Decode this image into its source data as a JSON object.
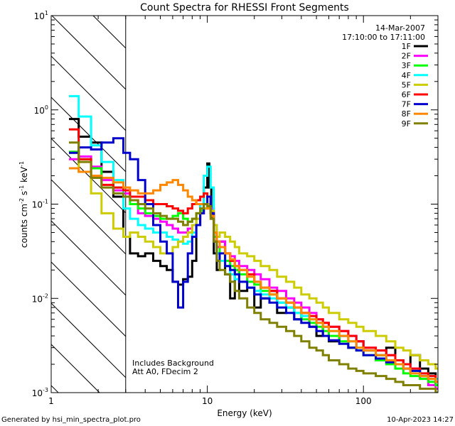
{
  "footer": {
    "generated_by": "Generated by hsi_min_spectra_plot.pro",
    "timestamp": "10-Apr-2023 14:27"
  },
  "chart_data": {
    "type": "line",
    "title": "Count Spectra for RHESSI Front Segments",
    "xlabel": "Energy (keV)",
    "ylabel_main": "counts cm",
    "ylabel_sup1": "-2",
    "ylabel_mid": " s",
    "ylabel_sup2": "-1",
    "ylabel_end": " keV",
    "ylabel_sup3": "-1",
    "xscale": "log",
    "yscale": "log",
    "xlim": [
      1,
      300
    ],
    "ylim": [
      0.001,
      10
    ],
    "x_ticks": [
      {
        "value": 1,
        "label": "1"
      },
      {
        "value": 10,
        "label": "10"
      },
      {
        "value": 100,
        "label": "100"
      }
    ],
    "y_ticks": [
      {
        "value": 0.001,
        "base": "10",
        "exp": "-3"
      },
      {
        "value": 0.01,
        "base": "10",
        "exp": "-2"
      },
      {
        "value": 0.1,
        "base": "10",
        "exp": "-1"
      },
      {
        "value": 1,
        "base": "10",
        "exp": "0"
      },
      {
        "value": 10,
        "base": "10",
        "exp": "1"
      }
    ],
    "attenuator_cutoff_kev": 3,
    "date": "14-Mar-2007",
    "time_range": "17:10:00 to 17:11:00",
    "annotations": [
      "Includes Background",
      "Att A0, FDecim 2"
    ],
    "series": [
      {
        "name": "1F",
        "color": "#000000",
        "x": [
          1.3,
          1.5,
          1.8,
          2.1,
          2.5,
          2.9,
          3.2,
          3.6,
          4.0,
          4.5,
          5.0,
          5.5,
          6.0,
          6.5,
          7.0,
          7.5,
          8.0,
          8.5,
          9.0,
          9.5,
          10.0,
          10.3,
          10.6,
          11.0,
          11.5,
          12.0,
          13,
          14,
          15,
          16,
          18,
          20,
          22,
          25,
          28,
          32,
          36,
          40,
          45,
          50,
          55,
          60,
          70,
          80,
          90,
          100,
          120,
          140,
          160,
          180,
          200,
          230,
          260,
          290
        ],
        "y": [
          0.8,
          0.52,
          0.45,
          0.22,
          0.12,
          0.045,
          0.03,
          0.028,
          0.03,
          0.025,
          0.022,
          0.02,
          0.015,
          0.014,
          0.016,
          0.017,
          0.025,
          0.06,
          0.1,
          0.15,
          0.27,
          0.15,
          0.07,
          0.03,
          0.02,
          0.04,
          0.018,
          0.01,
          0.02,
          0.012,
          0.013,
          0.008,
          0.01,
          0.012,
          0.007,
          0.008,
          0.006,
          0.007,
          0.005,
          0.004,
          0.005,
          0.0035,
          0.004,
          0.003,
          0.0035,
          0.0028,
          0.0025,
          0.003,
          0.0022,
          0.002,
          0.0025,
          0.0018,
          0.0016,
          0.0012
        ]
      },
      {
        "name": "2F",
        "color": "#ff00ff",
        "x": [
          1.3,
          1.5,
          1.8,
          2.1,
          2.5,
          2.9,
          3.2,
          3.6,
          4.0,
          4.5,
          5.0,
          5.5,
          6.0,
          6.5,
          7.0,
          7.5,
          8.0,
          8.5,
          9.0,
          9.5,
          10.0,
          10.5,
          11.0,
          11.5,
          12.0,
          13,
          14,
          15,
          16,
          18,
          20,
          22,
          25,
          28,
          32,
          36,
          40,
          45,
          50,
          55,
          60,
          70,
          80,
          90,
          100,
          120,
          140,
          160,
          180,
          200,
          230,
          260,
          290
        ],
        "y": [
          0.3,
          0.32,
          0.25,
          0.18,
          0.14,
          0.13,
          0.11,
          0.08,
          0.075,
          0.07,
          0.065,
          0.06,
          0.055,
          0.05,
          0.05,
          0.055,
          0.06,
          0.07,
          0.08,
          0.09,
          0.1,
          0.09,
          0.05,
          0.035,
          0.04,
          0.03,
          0.028,
          0.025,
          0.022,
          0.02,
          0.018,
          0.016,
          0.013,
          0.012,
          0.01,
          0.009,
          0.008,
          0.007,
          0.006,
          0.0055,
          0.005,
          0.0045,
          0.004,
          0.0035,
          0.003,
          0.0028,
          0.0025,
          0.0022,
          0.002,
          0.0018,
          0.0015,
          0.0012,
          0.0011
        ]
      },
      {
        "name": "3F",
        "color": "#00ff00",
        "x": [
          1.3,
          1.5,
          1.8,
          2.1,
          2.5,
          2.9,
          3.2,
          3.6,
          4.0,
          4.5,
          5.0,
          5.5,
          6.0,
          6.5,
          7.0,
          7.5,
          8.0,
          8.5,
          9.0,
          9.5,
          10.0,
          10.5,
          11.0,
          11.5,
          12.0,
          13,
          14,
          15,
          16,
          18,
          20,
          22,
          25,
          28,
          32,
          36,
          40,
          45,
          50,
          55,
          60,
          70,
          80,
          90,
          100,
          120,
          140,
          160,
          180,
          200,
          230,
          260,
          290
        ],
        "y": [
          0.36,
          0.3,
          0.24,
          0.19,
          0.15,
          0.12,
          0.1,
          0.09,
          0.08,
          0.075,
          0.07,
          0.07,
          0.075,
          0.08,
          0.07,
          0.065,
          0.07,
          0.08,
          0.085,
          0.09,
          0.1,
          0.08,
          0.045,
          0.03,
          0.035,
          0.025,
          0.022,
          0.02,
          0.018,
          0.015,
          0.014,
          0.012,
          0.011,
          0.009,
          0.008,
          0.007,
          0.006,
          0.0055,
          0.005,
          0.0045,
          0.004,
          0.0035,
          0.003,
          0.0028,
          0.0025,
          0.0022,
          0.002,
          0.0018,
          0.0016,
          0.0015,
          0.0014,
          0.0013,
          0.0012
        ]
      },
      {
        "name": "4F",
        "color": "#00ffff",
        "x": [
          1.3,
          1.5,
          1.8,
          2.1,
          2.5,
          2.9,
          3.2,
          3.6,
          4.0,
          4.5,
          5.0,
          5.5,
          6.0,
          6.5,
          7.0,
          7.5,
          8.0,
          8.5,
          9.0,
          9.5,
          10.0,
          10.5,
          11.0,
          11.5,
          12.0,
          13,
          14,
          15,
          16,
          18,
          20,
          22,
          25,
          28,
          32,
          36,
          40,
          45,
          50,
          55,
          60,
          70,
          80,
          90,
          100,
          120,
          140,
          160,
          180,
          200,
          230,
          260,
          290
        ],
        "y": [
          1.4,
          0.85,
          0.42,
          0.28,
          0.18,
          0.09,
          0.07,
          0.06,
          0.055,
          0.05,
          0.05,
          0.045,
          0.042,
          0.04,
          0.038,
          0.04,
          0.05,
          0.07,
          0.1,
          0.2,
          0.25,
          0.15,
          0.06,
          0.03,
          0.025,
          0.022,
          0.018,
          0.016,
          0.015,
          0.013,
          0.012,
          0.011,
          0.01,
          0.009,
          0.008,
          0.007,
          0.0065,
          0.006,
          0.0055,
          0.005,
          0.0045,
          0.004,
          0.0035,
          0.003,
          0.0028,
          0.0025,
          0.0022,
          0.002,
          0.0018,
          0.0017,
          0.0016,
          0.0015,
          0.0014
        ]
      },
      {
        "name": "5F",
        "color": "#cccc00",
        "x": [
          1.3,
          1.5,
          1.8,
          2.1,
          2.5,
          2.9,
          3.2,
          3.6,
          4.0,
          4.5,
          5.0,
          5.5,
          6.0,
          6.5,
          7.0,
          7.5,
          8.0,
          8.5,
          9.0,
          9.5,
          10.0,
          10.5,
          11.0,
          11.5,
          12.0,
          13,
          14,
          15,
          16,
          18,
          20,
          22,
          25,
          28,
          32,
          36,
          40,
          45,
          50,
          55,
          60,
          70,
          80,
          90,
          100,
          120,
          140,
          160,
          180,
          200,
          230,
          260,
          290
        ],
        "y": [
          0.35,
          0.22,
          0.13,
          0.08,
          0.055,
          0.045,
          0.05,
          0.045,
          0.04,
          0.035,
          0.03,
          0.03,
          0.035,
          0.04,
          0.045,
          0.05,
          0.06,
          0.07,
          0.08,
          0.09,
          0.1,
          0.085,
          0.06,
          0.045,
          0.05,
          0.045,
          0.04,
          0.035,
          0.03,
          0.028,
          0.025,
          0.022,
          0.02,
          0.017,
          0.015,
          0.013,
          0.011,
          0.01,
          0.009,
          0.008,
          0.007,
          0.006,
          0.0055,
          0.005,
          0.0045,
          0.004,
          0.0035,
          0.003,
          0.0028,
          0.0025,
          0.0022,
          0.002,
          0.0018
        ]
      },
      {
        "name": "6F",
        "color": "#ff0000",
        "x": [
          1.3,
          1.5,
          1.8,
          2.1,
          2.5,
          2.9,
          3.2,
          3.6,
          4.0,
          4.5,
          5.0,
          5.5,
          6.0,
          6.5,
          7.0,
          7.5,
          8.0,
          8.5,
          9.0,
          9.5,
          10.0,
          10.5,
          11.0,
          11.5,
          12.0,
          13,
          14,
          15,
          16,
          18,
          20,
          22,
          25,
          28,
          32,
          36,
          40,
          45,
          50,
          55,
          60,
          70,
          80,
          90,
          100,
          120,
          140,
          160,
          180,
          200,
          230,
          260,
          290
        ],
        "y": [
          0.62,
          0.3,
          0.2,
          0.16,
          0.15,
          0.14,
          0.12,
          0.12,
          0.11,
          0.1,
          0.1,
          0.095,
          0.09,
          0.085,
          0.08,
          0.09,
          0.1,
          0.11,
          0.12,
          0.13,
          0.12,
          0.08,
          0.05,
          0.04,
          0.035,
          0.03,
          0.025,
          0.022,
          0.02,
          0.018,
          0.015,
          0.013,
          0.012,
          0.01,
          0.009,
          0.008,
          0.007,
          0.0065,
          0.006,
          0.0055,
          0.005,
          0.0045,
          0.004,
          0.0035,
          0.003,
          0.0028,
          0.0025,
          0.0022,
          0.002,
          0.0018,
          0.0016,
          0.0015,
          0.0013
        ]
      },
      {
        "name": "7F",
        "color": "#0000cc",
        "x": [
          1.3,
          1.5,
          1.8,
          2.1,
          2.5,
          2.9,
          3.2,
          3.6,
          4.0,
          4.5,
          5.0,
          5.5,
          6.0,
          6.5,
          7.0,
          7.5,
          8.0,
          8.5,
          9.0,
          9.5,
          10.0,
          10.5,
          11.0,
          11.5,
          12.0,
          13,
          14,
          15,
          16,
          18,
          20,
          22,
          25,
          28,
          32,
          36,
          40,
          45,
          50,
          55,
          60,
          70,
          80,
          90,
          100,
          120,
          140,
          160,
          180,
          200,
          230,
          260,
          290
        ],
        "y": [
          0.35,
          0.4,
          0.38,
          0.45,
          0.5,
          0.35,
          0.3,
          0.18,
          0.1,
          0.06,
          0.04,
          0.03,
          0.015,
          0.008,
          0.015,
          0.03,
          0.045,
          0.06,
          0.08,
          0.1,
          0.12,
          0.08,
          0.04,
          0.025,
          0.03,
          0.022,
          0.02,
          0.018,
          0.015,
          0.013,
          0.011,
          0.01,
          0.009,
          0.008,
          0.007,
          0.006,
          0.0055,
          0.005,
          0.0045,
          0.004,
          0.0036,
          0.0033,
          0.003,
          0.0028,
          0.0025,
          0.0023,
          0.0021,
          0.002,
          0.0018,
          0.0017,
          0.0015,
          0.0014,
          0.0013
        ]
      },
      {
        "name": "8F",
        "color": "#ff8800",
        "x": [
          1.3,
          1.5,
          1.8,
          2.1,
          2.5,
          2.9,
          3.2,
          3.6,
          4.0,
          4.5,
          5.0,
          5.5,
          6.0,
          6.5,
          7.0,
          7.5,
          8.0,
          8.5,
          9.0,
          9.5,
          10.0,
          10.5,
          11.0,
          11.5,
          12.0,
          13,
          14,
          15,
          16,
          18,
          20,
          22,
          25,
          28,
          32,
          36,
          40,
          45,
          50,
          55,
          60,
          70,
          80,
          90,
          100,
          120,
          140,
          160,
          180,
          200,
          230,
          260,
          290
        ],
        "y": [
          0.24,
          0.22,
          0.2,
          0.19,
          0.17,
          0.15,
          0.14,
          0.13,
          0.13,
          0.14,
          0.16,
          0.17,
          0.18,
          0.16,
          0.14,
          0.12,
          0.11,
          0.1,
          0.1,
          0.1,
          0.09,
          0.075,
          0.05,
          0.04,
          0.035,
          0.03,
          0.026,
          0.022,
          0.02,
          0.017,
          0.015,
          0.013,
          0.011,
          0.01,
          0.009,
          0.008,
          0.007,
          0.006,
          0.0055,
          0.005,
          0.0045,
          0.004,
          0.0035,
          0.003,
          0.0028,
          0.0025,
          0.0022,
          0.002,
          0.0018,
          0.0016,
          0.0015,
          0.0014,
          0.0013
        ]
      },
      {
        "name": "9F",
        "color": "#808000",
        "x": [
          1.3,
          1.5,
          1.8,
          2.1,
          2.5,
          2.9,
          3.2,
          3.6,
          4.0,
          4.5,
          5.0,
          5.5,
          6.0,
          6.5,
          7.0,
          7.5,
          8.0,
          8.5,
          9.0,
          9.5,
          10.0,
          10.5,
          11.0,
          11.5,
          12.0,
          13,
          14,
          15,
          16,
          18,
          20,
          22,
          25,
          28,
          32,
          36,
          40,
          45,
          50,
          55,
          60,
          70,
          80,
          90,
          100,
          120,
          140,
          160,
          180,
          200,
          230,
          260,
          290
        ],
        "y": [
          0.45,
          0.28,
          0.19,
          0.15,
          0.13,
          0.12,
          0.11,
          0.1,
          0.09,
          0.08,
          0.075,
          0.07,
          0.07,
          0.065,
          0.06,
          0.065,
          0.07,
          0.08,
          0.09,
          0.1,
          0.095,
          0.07,
          0.04,
          0.025,
          0.02,
          0.018,
          0.015,
          0.012,
          0.01,
          0.008,
          0.007,
          0.006,
          0.0055,
          0.005,
          0.0045,
          0.004,
          0.0035,
          0.003,
          0.0028,
          0.0025,
          0.0022,
          0.002,
          0.0018,
          0.0017,
          0.0016,
          0.0015,
          0.0014,
          0.0013,
          0.0012,
          0.0012,
          0.0011,
          0.0011,
          0.001
        ]
      }
    ]
  }
}
